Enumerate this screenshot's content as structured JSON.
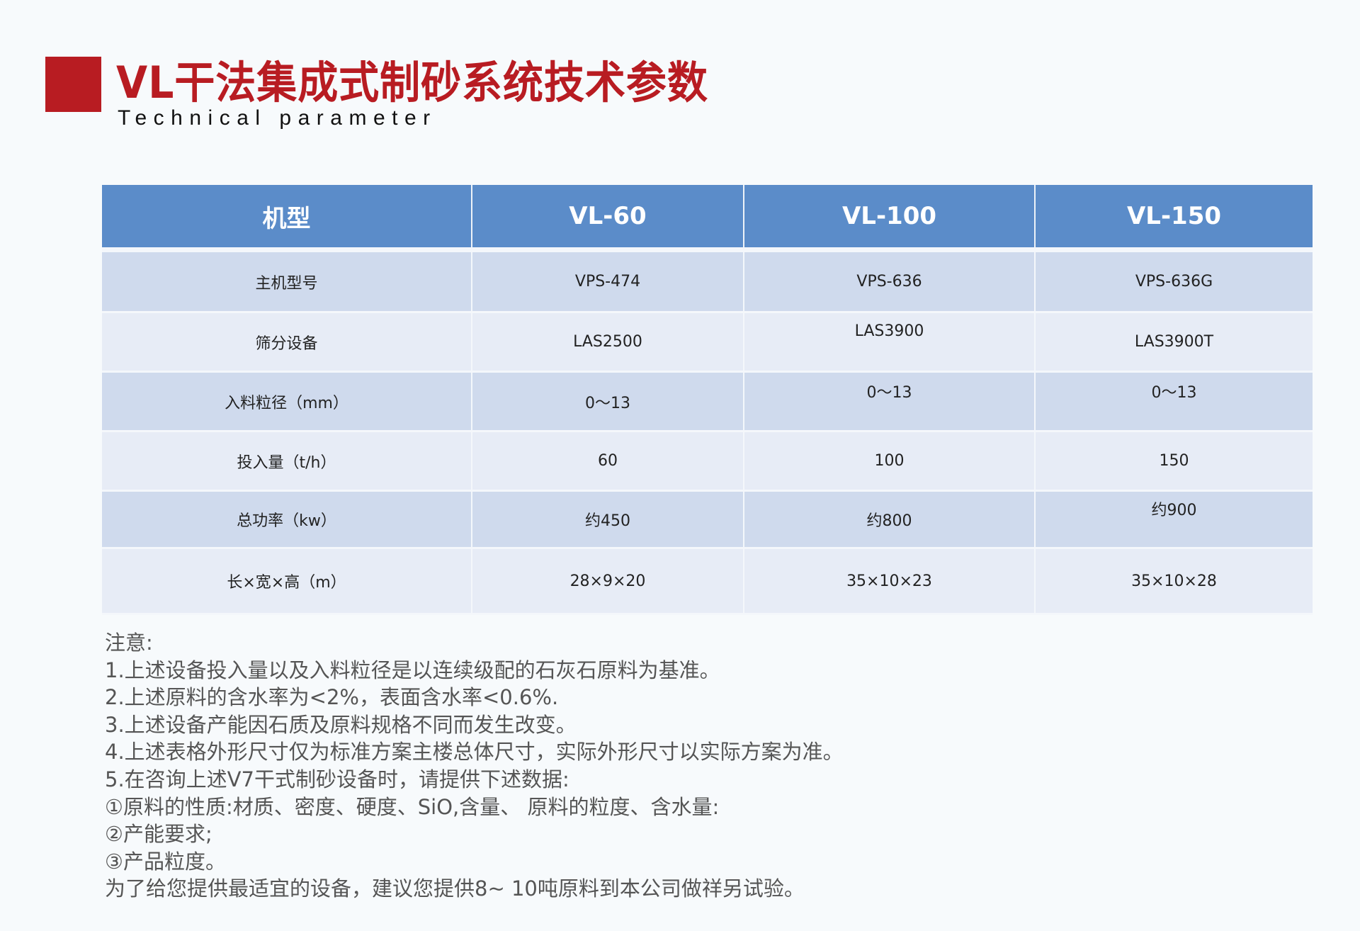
{
  "header": {
    "title": "VL干法集成式制砂系统技术参数",
    "subtitle": "Technical parameter",
    "accent_color": "#b81c22"
  },
  "table": {
    "header_color": "#5b8cc9",
    "columns": [
      "机型",
      "VL-60",
      "VL-100",
      "VL-150"
    ],
    "rows": [
      {
        "label": "主机型号",
        "values": [
          "VPS-474",
          "VPS-636",
          "VPS-636G"
        ]
      },
      {
        "label": "筛分设备",
        "values": [
          "LAS2500",
          "LAS3900",
          "LAS3900T"
        ]
      },
      {
        "label": "入料粒径（mm）",
        "values": [
          "0～13",
          "0～13",
          "0～13"
        ]
      },
      {
        "label": "投入量（t/h）",
        "values": [
          "60",
          "100",
          "150"
        ]
      },
      {
        "label": "总功率（kw）",
        "values": [
          "约450",
          "约800",
          "约900"
        ]
      },
      {
        "label": "长×宽×高（m）",
        "values": [
          "28×9×20",
          "35×10×23",
          "35×10×28"
        ]
      }
    ]
  },
  "notes": [
    "注意:",
    "1.上述设备投入量以及入料粒径是以连续级配的石灰石原料为基准。",
    "2.上述原料的含水率为<2%，表面含水率<0.6%.",
    "3.上述设备产能因石质及原料规格不同而发生改变。",
    "4.上述表格外形尺寸仅为标准方案主楼总体尺寸，实际外形尺寸以实际方案为准。",
    "5.在咨询上述V7干式制砂设备时，请提供下述数据:",
    "①原料的性质:材质、密度、硬度、SiO,含量、 原料的粒度、含水量:",
    "②产能要求;",
    "③产品粒度。",
    "为了给您提供最适宜的设备，建议您提供8~ 10吨原料到本公司做祥另试验。"
  ]
}
